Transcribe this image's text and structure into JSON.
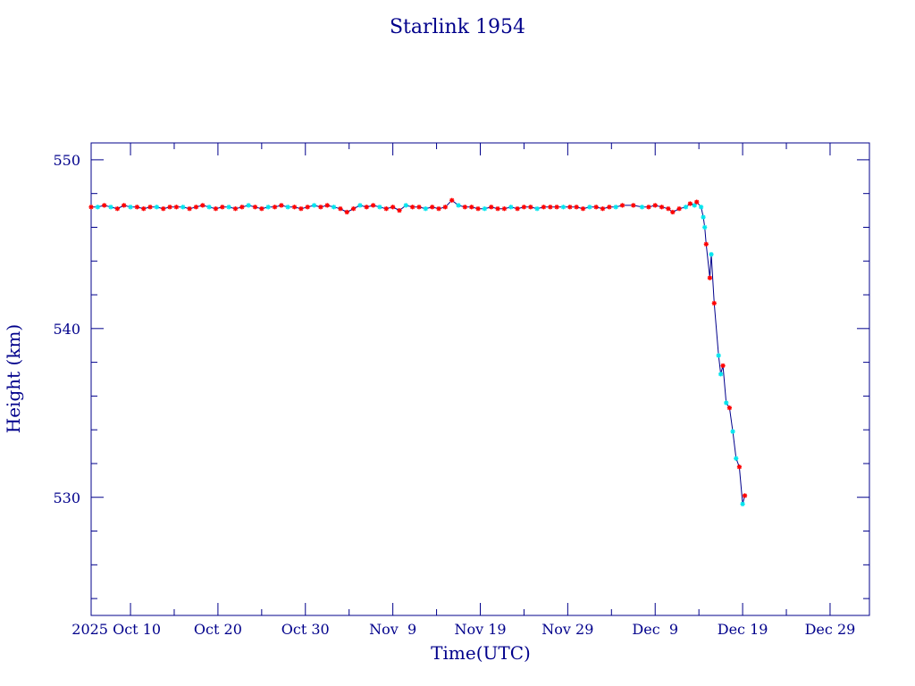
{
  "chart_data": {
    "type": "scatter",
    "title": "Starlink 1954",
    "xlabel": "Time(UTC)",
    "ylabel": "Height (km)",
    "x_ticks": [
      {
        "date": "2025-10-10",
        "label": "2025 Oct 10"
      },
      {
        "date": "2025-10-20",
        "label": "Oct 20"
      },
      {
        "date": "2025-10-30",
        "label": "Oct 30"
      },
      {
        "date": "2025-11-09",
        "label": "Nov  9"
      },
      {
        "date": "2025-11-19",
        "label": "Nov 19"
      },
      {
        "date": "2025-11-29",
        "label": "Nov 29"
      },
      {
        "date": "2025-12-09",
        "label": "Dec  9"
      },
      {
        "date": "2025-12-19",
        "label": "Dec 19"
      },
      {
        "date": "2025-12-29",
        "label": "Dec 29"
      }
    ],
    "xlim": [
      "2025-10-05T12:00",
      "2026-01-02T12:00"
    ],
    "ylim": [
      523,
      551
    ],
    "y_ticks": [
      530,
      540,
      550
    ],
    "y_minor_step": 2,
    "x_minor_step_days": 5,
    "grid": false,
    "colors": {
      "frame": "#00008b",
      "line": "#00008b",
      "marker_a": "#ff0000",
      "marker_b": "#00e5ee"
    },
    "series": [
      {
        "line": true,
        "points": [
          [
            "2025-10-05T12:00",
            547.2,
            "a"
          ],
          [
            "2025-10-06T06:00",
            547.2,
            "b"
          ],
          [
            "2025-10-07T00:00",
            547.3,
            "a"
          ],
          [
            "2025-10-07T18:00",
            547.2,
            "b"
          ],
          [
            "2025-10-08T12:00",
            547.1,
            "a"
          ],
          [
            "2025-10-09T06:00",
            547.3,
            "a"
          ],
          [
            "2025-10-10T00:00",
            547.2,
            "b"
          ],
          [
            "2025-10-10T18:00",
            547.2,
            "a"
          ],
          [
            "2025-10-11T12:00",
            547.1,
            "a"
          ],
          [
            "2025-10-12T06:00",
            547.2,
            "a"
          ],
          [
            "2025-10-13T00:00",
            547.2,
            "b"
          ],
          [
            "2025-10-13T18:00",
            547.1,
            "a"
          ],
          [
            "2025-10-14T12:00",
            547.2,
            "a"
          ],
          [
            "2025-10-15T06:00",
            547.2,
            "a"
          ],
          [
            "2025-10-16T00:00",
            547.2,
            "b"
          ],
          [
            "2025-10-16T18:00",
            547.1,
            "a"
          ],
          [
            "2025-10-17T12:00",
            547.2,
            "a"
          ],
          [
            "2025-10-18T06:00",
            547.3,
            "a"
          ],
          [
            "2025-10-19T00:00",
            547.2,
            "b"
          ],
          [
            "2025-10-19T18:00",
            547.1,
            "a"
          ],
          [
            "2025-10-20T12:00",
            547.2,
            "a"
          ],
          [
            "2025-10-21T06:00",
            547.2,
            "b"
          ],
          [
            "2025-10-22T00:00",
            547.1,
            "a"
          ],
          [
            "2025-10-22T18:00",
            547.2,
            "a"
          ],
          [
            "2025-10-23T12:00",
            547.3,
            "b"
          ],
          [
            "2025-10-24T06:00",
            547.2,
            "a"
          ],
          [
            "2025-10-25T00:00",
            547.1,
            "a"
          ],
          [
            "2025-10-25T18:00",
            547.2,
            "b"
          ],
          [
            "2025-10-26T12:00",
            547.2,
            "a"
          ],
          [
            "2025-10-27T06:00",
            547.3,
            "a"
          ],
          [
            "2025-10-28T00:00",
            547.2,
            "b"
          ],
          [
            "2025-10-28T18:00",
            547.2,
            "a"
          ],
          [
            "2025-10-29T12:00",
            547.1,
            "a"
          ],
          [
            "2025-10-30T06:00",
            547.2,
            "a"
          ],
          [
            "2025-10-31T00:00",
            547.3,
            "b"
          ],
          [
            "2025-10-31T18:00",
            547.2,
            "a"
          ],
          [
            "2025-11-01T12:00",
            547.3,
            "a"
          ],
          [
            "2025-11-02T06:00",
            547.2,
            "b"
          ],
          [
            "2025-11-03T00:00",
            547.1,
            "a"
          ],
          [
            "2025-11-03T18:00",
            546.9,
            "a"
          ],
          [
            "2025-11-04T12:00",
            547.1,
            "a"
          ],
          [
            "2025-11-05T06:00",
            547.3,
            "b"
          ],
          [
            "2025-11-06T00:00",
            547.2,
            "a"
          ],
          [
            "2025-11-06T18:00",
            547.3,
            "a"
          ],
          [
            "2025-11-07T12:00",
            547.2,
            "b"
          ],
          [
            "2025-11-08T06:00",
            547.1,
            "a"
          ],
          [
            "2025-11-09T00:00",
            547.2,
            "a"
          ],
          [
            "2025-11-09T18:00",
            547.0,
            "a"
          ],
          [
            "2025-11-10T12:00",
            547.3,
            "b"
          ],
          [
            "2025-11-11T06:00",
            547.2,
            "a"
          ],
          [
            "2025-11-12T00:00",
            547.2,
            "a"
          ],
          [
            "2025-11-12T18:00",
            547.1,
            "b"
          ],
          [
            "2025-11-13T12:00",
            547.2,
            "a"
          ],
          [
            "2025-11-14T06:00",
            547.1,
            "a"
          ],
          [
            "2025-11-15T00:00",
            547.2,
            "a"
          ],
          [
            "2025-11-15T18:00",
            547.6,
            "a"
          ],
          [
            "2025-11-16T12:00",
            547.3,
            "b"
          ],
          [
            "2025-11-17T06:00",
            547.2,
            "a"
          ],
          [
            "2025-11-18T00:00",
            547.2,
            "a"
          ],
          [
            "2025-11-18T18:00",
            547.1,
            "a"
          ],
          [
            "2025-11-19T12:00",
            547.1,
            "b"
          ],
          [
            "2025-11-20T06:00",
            547.2,
            "a"
          ],
          [
            "2025-11-21T00:00",
            547.1,
            "a"
          ],
          [
            "2025-11-21T18:00",
            547.1,
            "a"
          ],
          [
            "2025-11-22T12:00",
            547.2,
            "b"
          ],
          [
            "2025-11-23T06:00",
            547.1,
            "a"
          ],
          [
            "2025-11-24T00:00",
            547.2,
            "a"
          ],
          [
            "2025-11-24T18:00",
            547.2,
            "a"
          ],
          [
            "2025-11-25T12:00",
            547.1,
            "b"
          ],
          [
            "2025-11-26T06:00",
            547.2,
            "a"
          ],
          [
            "2025-11-27T00:00",
            547.2,
            "a"
          ],
          [
            "2025-11-27T18:00",
            547.2,
            "a"
          ],
          [
            "2025-11-28T12:00",
            547.2,
            "b"
          ],
          [
            "2025-11-29T06:00",
            547.2,
            "a"
          ],
          [
            "2025-11-30T00:00",
            547.2,
            "a"
          ],
          [
            "2025-11-30T18:00",
            547.1,
            "a"
          ],
          [
            "2025-12-01T12:00",
            547.2,
            "b"
          ],
          [
            "2025-12-02T06:00",
            547.2,
            "a"
          ],
          [
            "2025-12-03T00:00",
            547.1,
            "a"
          ],
          [
            "2025-12-03T18:00",
            547.2,
            "a"
          ],
          [
            "2025-12-04T12:00",
            547.2,
            "b"
          ],
          [
            "2025-12-05T06:00",
            547.3,
            "a"
          ],
          [
            "2025-12-06T12:00",
            547.3,
            "a"
          ],
          [
            "2025-12-07T12:00",
            547.2,
            "b"
          ],
          [
            "2025-12-08T06:00",
            547.2,
            "a"
          ],
          [
            "2025-12-09T00:00",
            547.3,
            "a"
          ],
          [
            "2025-12-09T18:00",
            547.2,
            "a"
          ],
          [
            "2025-12-10T12:00",
            547.1,
            "a"
          ],
          [
            "2025-12-11T00:00",
            546.9,
            "a"
          ],
          [
            "2025-12-11T18:00",
            547.1,
            "a"
          ],
          [
            "2025-12-12T12:00",
            547.2,
            "b"
          ],
          [
            "2025-12-13T00:00",
            547.4,
            "a"
          ],
          [
            "2025-12-13T12:00",
            547.3,
            "b"
          ],
          [
            "2025-12-13T18:00",
            547.5,
            "a"
          ],
          [
            "2025-12-14T06:00",
            547.2,
            "b"
          ],
          [
            "2025-12-14T12:00",
            546.6,
            "b"
          ],
          [
            "2025-12-14T16:00",
            546.0,
            "b"
          ],
          [
            "2025-12-14T20:00",
            545.0,
            "a"
          ],
          [
            "2025-12-15T06:00",
            543.0,
            "a"
          ],
          [
            "2025-12-15T10:00",
            544.4,
            "b"
          ],
          [
            "2025-12-15T18:00",
            541.5,
            "a"
          ],
          [
            "2025-12-16T06:00",
            538.4,
            "b"
          ],
          [
            "2025-12-16T12:00",
            537.3,
            "b"
          ],
          [
            "2025-12-16T18:00",
            537.8,
            "a"
          ],
          [
            "2025-12-17T03:00",
            535.6,
            "b"
          ],
          [
            "2025-12-17T12:00",
            535.3,
            "a"
          ],
          [
            "2025-12-17T21:00",
            533.9,
            "b"
          ],
          [
            "2025-12-18T06:00",
            532.3,
            "b"
          ],
          [
            "2025-12-18T15:00",
            531.8,
            "a"
          ],
          [
            "2025-12-19T00:00",
            529.6,
            "b"
          ],
          [
            "2025-12-19T06:00",
            530.1,
            "a"
          ]
        ]
      }
    ]
  }
}
